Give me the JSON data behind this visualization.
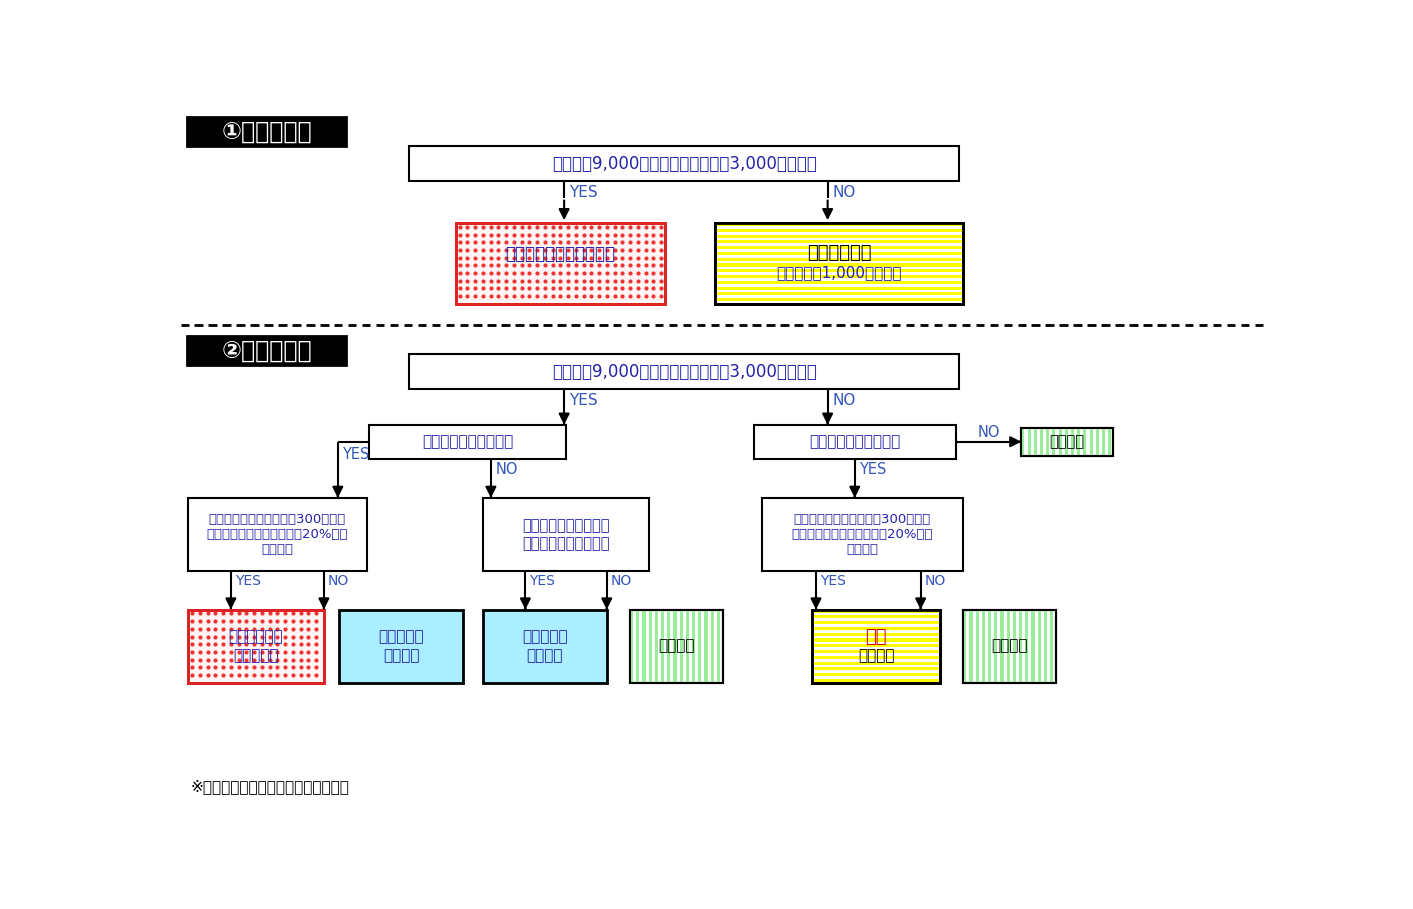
{
  "title1": "①新設の場合",
  "title2": "②変更の場合",
  "top_box_text": "敷地面積9,000㎡以上又は建築面積3,000㎡以上か",
  "yes_label": "YES",
  "no_label": "NO",
  "change_yes_branch": "生産施設を増設するか",
  "change_no_branch": "生産施設を増設するか",
  "change_yes_yes_box": "増設する生産施設面積が300㎡以上\n又は増設前生産施設面積の20%以上\nの増設か",
  "change_yes_no_box": "施設面積を変更するか\n緑地面積を減少するか",
  "change_no_yes_box": "増設する生産施設面積が300㎡以上\n又は増設前生産施設面積の20%以上\nの増設か",
  "footnote": "※条例・・福島県工業開発条例のこと",
  "bg_color": "#ffffff"
}
